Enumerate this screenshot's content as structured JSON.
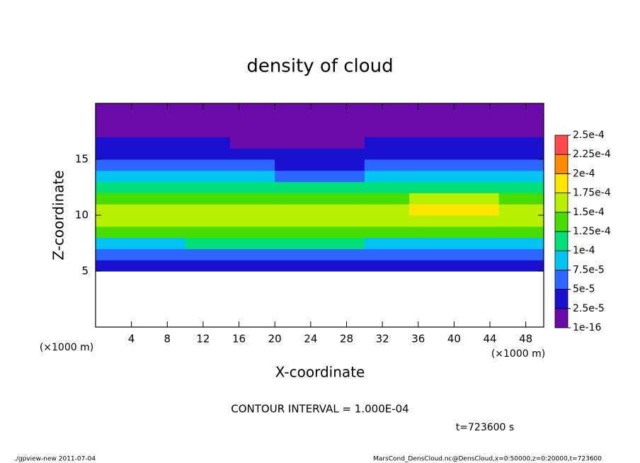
{
  "chart_data": {
    "type": "contour",
    "title": "density of cloud",
    "xlabel": "X-coordinate",
    "ylabel": "Z-coordinate",
    "xunit": "(×1000 m)",
    "yunit": "(×1000 m)",
    "xlim": [
      0,
      50
    ],
    "ylim": [
      0,
      20
    ],
    "xticks": [
      4,
      8,
      12,
      16,
      20,
      24,
      28,
      32,
      36,
      40,
      44,
      48
    ],
    "yticks": [
      5,
      10,
      15
    ],
    "x": [
      2.5,
      7.5,
      12.5,
      17.5,
      22.5,
      27.5,
      32.5,
      37.5,
      42.5,
      47.5
    ],
    "y": [
      0.5,
      1.5,
      2.5,
      3.5,
      4.5,
      5.5,
      6.5,
      7.5,
      8.5,
      9.5,
      10.5,
      11.5,
      12.5,
      13.5,
      14.5,
      15.5,
      16.5,
      17.5,
      18.5,
      19.5
    ],
    "values": [
      [
        null,
        null,
        null,
        null,
        null,
        null,
        null,
        null,
        null,
        null
      ],
      [
        null,
        null,
        null,
        null,
        null,
        null,
        null,
        null,
        null,
        null
      ],
      [
        null,
        null,
        null,
        null,
        null,
        null,
        null,
        null,
        null,
        null
      ],
      [
        null,
        null,
        null,
        null,
        null,
        null,
        null,
        null,
        null,
        null
      ],
      [
        null,
        null,
        null,
        null,
        null,
        null,
        null,
        null,
        null,
        null
      ],
      [
        4e-05,
        3e-05,
        4e-05,
        4e-05,
        4e-05,
        4e-05,
        3e-05,
        4e-05,
        4e-05,
        4e-05
      ],
      [
        7e-05,
        6e-05,
        7e-05,
        7e-05,
        7e-05,
        7e-05,
        6e-05,
        7e-05,
        7e-05,
        7e-05
      ],
      [
        9e-05,
        9e-05,
        0.000105,
        0.000105,
        0.000105,
        0.0001,
        9e-05,
        9.5e-05,
        9.5e-05,
        9.5e-05
      ],
      [
        0.00013,
        0.00013,
        0.000135,
        0.000135,
        0.00014,
        0.000135,
        0.000125,
        0.00014,
        0.00014,
        0.00013
      ],
      [
        0.00016,
        0.000155,
        0.000155,
        0.000155,
        0.000165,
        0.00016,
        0.00015,
        0.00017,
        0.00017,
        0.00016
      ],
      [
        0.00016,
        0.00016,
        0.000155,
        0.000155,
        0.00017,
        0.00016,
        0.00015,
        0.000175,
        0.00018,
        0.00016
      ],
      [
        0.00014,
        0.00014,
        0.000135,
        0.000135,
        0.000145,
        0.00014,
        0.000135,
        0.00015,
        0.00015,
        0.00014
      ],
      [
        0.000105,
        0.0001,
        0.000105,
        0.000105,
        0.00011,
        0.000105,
        0.000105,
        0.000105,
        0.000105,
        0.000105
      ],
      [
        8e-05,
        8e-05,
        8.5e-05,
        8e-05,
        6e-05,
        7e-05,
        8e-05,
        8e-05,
        8e-05,
        8e-05
      ],
      [
        6e-05,
        6e-05,
        6.5e-05,
        5.5e-05,
        3e-05,
        4e-05,
        6e-05,
        6e-05,
        6e-05,
        6e-05
      ],
      [
        4e-05,
        4.5e-05,
        4.5e-05,
        3.5e-05,
        2.5e-05,
        3e-05,
        4e-05,
        4e-05,
        4e-05,
        4e-05
      ],
      [
        3e-05,
        3e-05,
        2.5e-05,
        2e-05,
        2e-05,
        2e-05,
        2.5e-05,
        2.5e-05,
        3e-05,
        3e-05
      ],
      [
        1.5e-05,
        1.5e-05,
        1.5e-05,
        1.5e-05,
        1.5e-05,
        1.5e-05,
        1.5e-05,
        1.5e-05,
        1.5e-05,
        1.5e-05
      ],
      [
        1e-05,
        1e-05,
        1e-05,
        1e-05,
        1e-05,
        1e-05,
        1e-05,
        1e-05,
        1e-05,
        1e-05
      ],
      [
        1e-05,
        1e-05,
        1e-05,
        1e-05,
        1e-05,
        1e-05,
        1e-05,
        1e-05,
        1e-05,
        1e-05
      ]
    ],
    "levels": [
      {
        "value": 1e-16,
        "label": "1e-16"
      },
      {
        "value": 2.5e-05,
        "label": "2.5e-5"
      },
      {
        "value": 5e-05,
        "label": "5e-5"
      },
      {
        "value": 7.5e-05,
        "label": "7.5e-5"
      },
      {
        "value": 0.0001,
        "label": "1e-4"
      },
      {
        "value": 0.000125,
        "label": "1.25e-4"
      },
      {
        "value": 0.00015,
        "label": "1.5e-4"
      },
      {
        "value": 0.000175,
        "label": "1.75e-4"
      },
      {
        "value": 0.0002,
        "label": "2e-4"
      },
      {
        "value": 0.000225,
        "label": "2.25e-4"
      },
      {
        "value": 0.00025,
        "label": "2.5e-4"
      }
    ],
    "colors": [
      "#6a0aa8",
      "#1a10d0",
      "#2a66ff",
      "#00c4f4",
      "#00e07a",
      "#48dc00",
      "#b8f000",
      "#ffe400",
      "#ff8c00",
      "#ff4a4a"
    ],
    "contour_interval": "CONTOUR INTERVAL = 1.000E-04",
    "time_label": "t=723600 s",
    "footer_left": "./gpview-new  2011-07-04",
    "footer_right": "MarsCond_DensCloud.nc@DensCloud,x=0:50000,z=0:20000,t=723600"
  }
}
